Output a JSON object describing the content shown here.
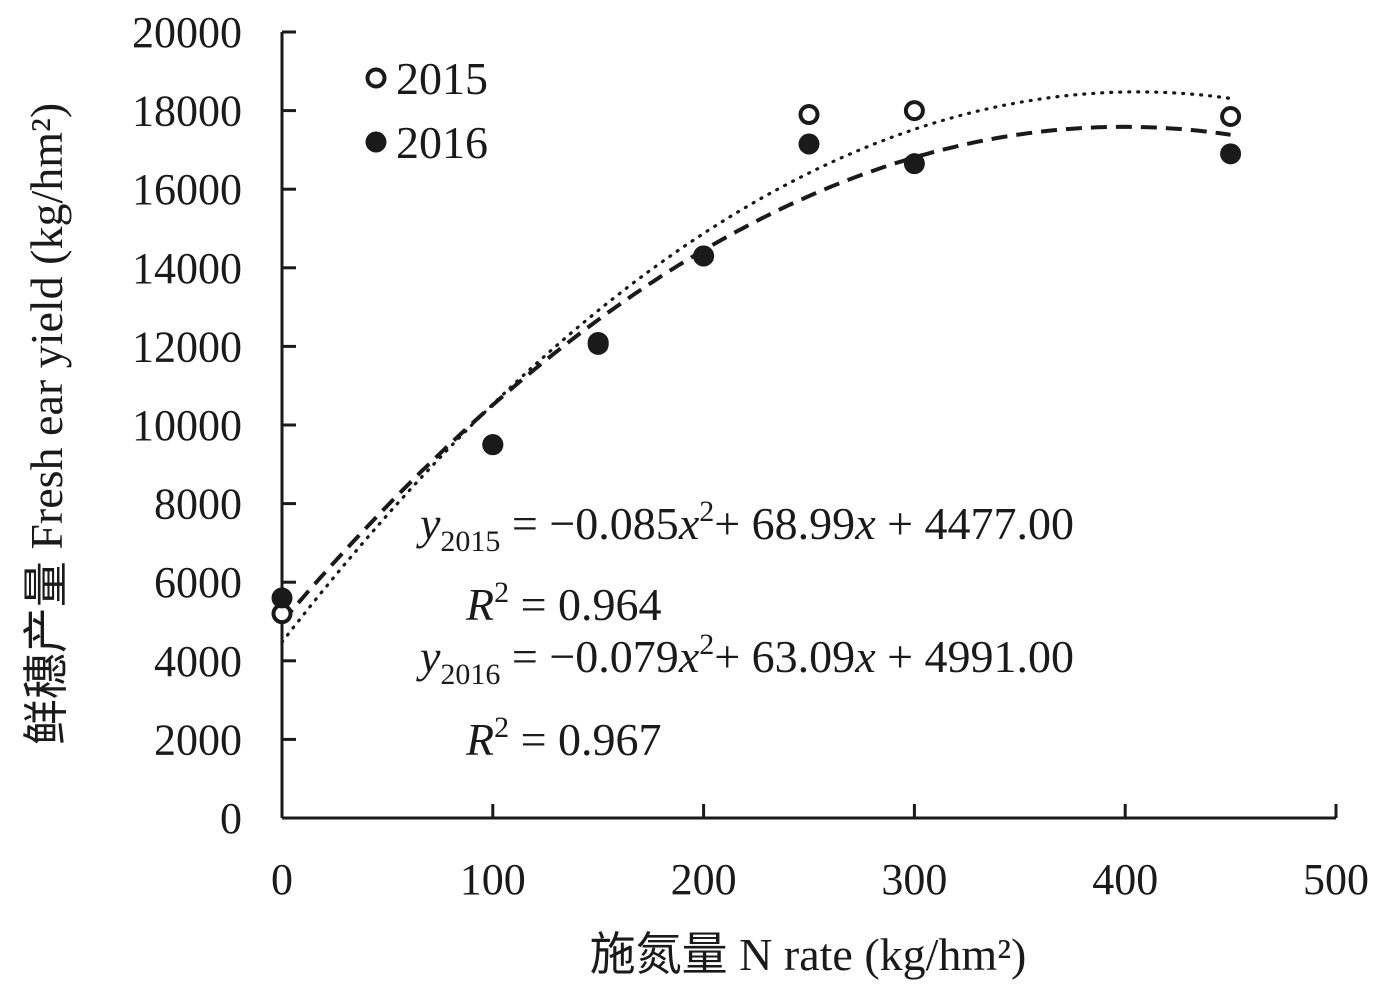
{
  "chart_data": {
    "type": "scatter",
    "xlabel": "施氮量 N rate (kg/hm²)",
    "ylabel": "鲜穗产量 Fresh ear yield (kg/hm²)",
    "xlim": [
      0,
      500
    ],
    "ylim": [
      0,
      20000
    ],
    "x_ticks": [
      "0",
      "100",
      "200",
      "300",
      "400",
      "500"
    ],
    "y_ticks": [
      "0",
      "2000",
      "4000",
      "6000",
      "8000",
      "10000",
      "12000",
      "14000",
      "16000",
      "18000",
      "20000"
    ],
    "grid": false,
    "legend_position": "top-left",
    "series": [
      {
        "name": "2015",
        "marker": "open-circle",
        "trendline": "dotted",
        "x": [
          0,
          100,
          150,
          200,
          250,
          300,
          450
        ],
        "y": [
          5200,
          9500,
          12100,
          14300,
          17900,
          18000,
          17850
        ],
        "fit": {
          "a": -0.085,
          "b": 68.99,
          "c": 4477.0
        }
      },
      {
        "name": "2016",
        "marker": "filled-circle",
        "trendline": "dashed",
        "x": [
          0,
          100,
          150,
          200,
          250,
          300,
          450
        ],
        "y": [
          5600,
          9500,
          12050,
          14300,
          17150,
          16650,
          16900
        ],
        "fit": {
          "a": -0.079,
          "b": 63.09,
          "c": 4991.0
        }
      }
    ],
    "annotations": {
      "eq2015": {
        "y": "y",
        "sub": "2015",
        "part1": " = −0.085",
        "x1": "x",
        "sup": "2",
        "part2": "+ 68.99",
        "x2": "x",
        "part3": " + 4477.00"
      },
      "r2015": {
        "r": "R",
        "sup": "2",
        "value": " = 0.964"
      },
      "eq2016": {
        "y": "y",
        "sub": "2016",
        "part1": " = −0.079",
        "x1": "x",
        "sup": "2",
        "part2": "+ 63.09",
        "x2": "x",
        "part3": " + 4991.00"
      },
      "r2016": {
        "r": "R",
        "sup": "2",
        "value": " = 0.967"
      }
    },
    "colors": {
      "ink": "#1a1a1a",
      "background": "#ffffff"
    }
  }
}
